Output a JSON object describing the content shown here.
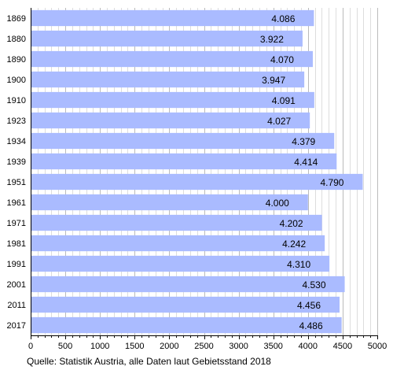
{
  "chart_data": {
    "type": "bar",
    "orientation": "horizontal",
    "categories": [
      "1869",
      "1880",
      "1890",
      "1900",
      "1910",
      "1923",
      "1934",
      "1939",
      "1951",
      "1961",
      "1971",
      "1981",
      "1991",
      "2001",
      "2011",
      "2017"
    ],
    "values": [
      4086,
      3922,
      4070,
      3947,
      4091,
      4027,
      4379,
      4414,
      4790,
      4000,
      4202,
      4242,
      4310,
      4530,
      4456,
      4486
    ],
    "value_labels": [
      "4.086",
      "3.922",
      "4.070",
      "3.947",
      "4.091",
      "4.027",
      "4.379",
      "4.414",
      "4.790",
      "4.000",
      "4.202",
      "4.242",
      "4.310",
      "4.530",
      "4.456",
      "4.486"
    ],
    "x_ticks": [
      0,
      500,
      1000,
      1500,
      2000,
      2500,
      3000,
      3500,
      4000,
      4500,
      5000
    ],
    "xlim": [
      0,
      5000
    ],
    "grid": true,
    "title": "",
    "xlabel": "",
    "ylabel": "",
    "bar_color": "#aabbff"
  },
  "source_note": "Quelle: Statistik Austria, alle Daten laut Gebietsstand 2018"
}
